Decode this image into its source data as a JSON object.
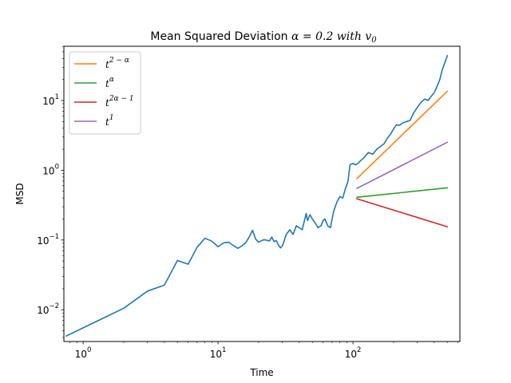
{
  "chart_data": {
    "type": "line",
    "title_prefix": "Mean Squared Deviation ",
    "title_math": "α = 0.2 with v",
    "title_math_sub": "0",
    "xlabel": "Time",
    "ylabel": "MSD",
    "xscale": "log",
    "yscale": "log",
    "xlim": [
      0.72,
      620
    ],
    "ylim": [
      0.0035,
      60
    ],
    "grid": false,
    "legend_position": "top-left",
    "x_ticks": [
      {
        "base": "10",
        "exp": "0",
        "value": 1
      },
      {
        "base": "10",
        "exp": "1",
        "value": 10
      },
      {
        "base": "10",
        "exp": "2",
        "value": 100
      }
    ],
    "y_ticks": [
      {
        "base": "10",
        "exp": "−2",
        "value": 0.01
      },
      {
        "base": "10",
        "exp": "−1",
        "value": 0.1
      },
      {
        "base": "10",
        "exp": "0",
        "value": 1
      },
      {
        "base": "10",
        "exp": "1",
        "value": 10
      }
    ],
    "series": [
      {
        "color": "#1f77b4",
        "points": [
          [
            0.75,
            0.0042
          ],
          [
            1,
            0.0055
          ],
          [
            2,
            0.0105
          ],
          [
            3,
            0.0185
          ],
          [
            4,
            0.0225
          ],
          [
            5,
            0.051
          ],
          [
            6,
            0.045
          ],
          [
            7,
            0.079
          ],
          [
            8,
            0.106
          ],
          [
            9,
            0.096
          ],
          [
            10,
            0.08
          ],
          [
            11,
            0.091
          ],
          [
            12,
            0.093
          ],
          [
            13,
            0.083
          ],
          [
            14,
            0.076
          ],
          [
            15,
            0.082
          ],
          [
            16,
            0.091
          ],
          [
            17,
            0.11
          ],
          [
            18,
            0.138
          ],
          [
            19,
            0.103
          ],
          [
            20,
            0.093
          ],
          [
            21,
            0.098
          ],
          [
            22,
            0.101
          ],
          [
            23,
            0.099
          ],
          [
            24,
            0.097
          ],
          [
            25,
            0.11
          ],
          [
            26,
            0.095
          ],
          [
            27,
            0.098
          ],
          [
            28,
            0.085
          ],
          [
            29,
            0.077
          ],
          [
            30,
            0.082
          ],
          [
            32,
            0.12
          ],
          [
            34,
            0.14
          ],
          [
            36,
            0.12
          ],
          [
            38,
            0.16
          ],
          [
            40,
            0.15
          ],
          [
            42,
            0.14
          ],
          [
            44,
            0.2
          ],
          [
            45,
            0.24
          ],
          [
            46,
            0.19
          ],
          [
            48,
            0.23
          ],
          [
            50,
            0.2
          ],
          [
            53,
            0.17
          ],
          [
            55,
            0.15
          ],
          [
            58,
            0.16
          ],
          [
            60,
            0.19
          ],
          [
            62,
            0.2
          ],
          [
            65,
            0.16
          ],
          [
            68,
            0.15
          ],
          [
            72,
            0.26
          ],
          [
            76,
            0.35
          ],
          [
            80,
            0.42
          ],
          [
            84,
            0.4
          ],
          [
            88,
            0.55
          ],
          [
            92,
            0.7
          ],
          [
            95,
            1.2
          ],
          [
            100,
            1.25
          ],
          [
            105,
            1.2
          ],
          [
            110,
            1.28
          ],
          [
            115,
            1.4
          ],
          [
            120,
            1.5
          ],
          [
            130,
            1.8
          ],
          [
            140,
            1.7
          ],
          [
            150,
            2.0
          ],
          [
            160,
            2.2
          ],
          [
            170,
            2.4
          ],
          [
            180,
            2.9
          ],
          [
            190,
            3.3
          ],
          [
            200,
            3.9
          ],
          [
            210,
            4.5
          ],
          [
            220,
            4.4
          ],
          [
            235,
            4.8
          ],
          [
            250,
            5.0
          ],
          [
            265,
            5.2
          ],
          [
            280,
            6.5
          ],
          [
            300,
            8.0
          ],
          [
            320,
            9.5
          ],
          [
            340,
            10.5
          ],
          [
            360,
            10.0
          ],
          [
            380,
            11.5
          ],
          [
            400,
            13.0
          ],
          [
            420,
            16.0
          ],
          [
            440,
            20.0
          ],
          [
            460,
            28.0
          ],
          [
            480,
            35.0
          ],
          [
            500,
            44.0
          ]
        ]
      },
      {
        "name": "t",
        "sup": "2 − α",
        "color": "#ff7f0e",
        "points": [
          [
            107,
            0.76
          ],
          [
            500,
            13.6
          ]
        ]
      },
      {
        "name": "t",
        "sup": "α",
        "color": "#2ca02c",
        "points": [
          [
            107,
            0.41
          ],
          [
            500,
            0.56
          ]
        ]
      },
      {
        "name": "t",
        "sup": "2α − 1",
        "color": "#d62728",
        "points": [
          [
            107,
            0.39
          ],
          [
            500,
            0.155
          ]
        ]
      },
      {
        "name": "t",
        "sup": "1",
        "color": "#9467bd",
        "points": [
          [
            107,
            0.55
          ],
          [
            500,
            2.52
          ]
        ]
      }
    ]
  }
}
